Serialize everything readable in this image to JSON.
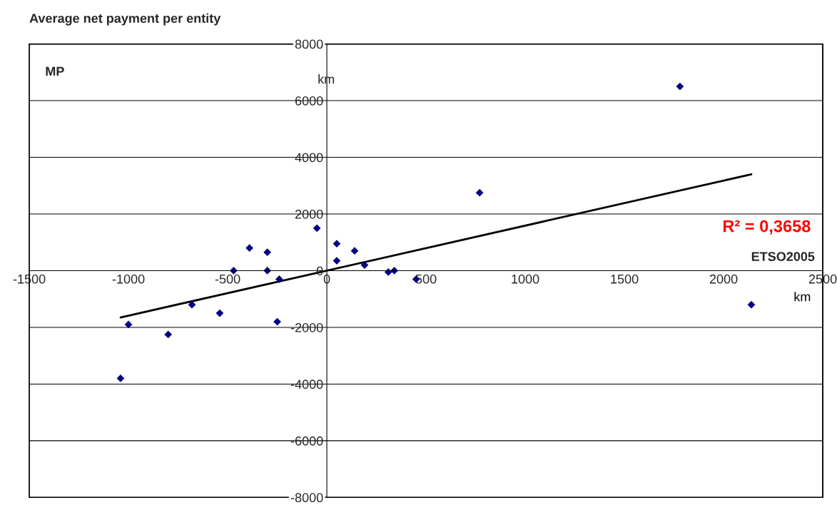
{
  "chart_data": {
    "type": "scatter",
    "title": "Average net payment per entity",
    "xlabel": "ETSO2005",
    "ylabel": "MP",
    "annotations": [
      "km",
      "km",
      "R² = 0,3658"
    ],
    "series": [
      {
        "color": "#000080",
        "marker": "diamond",
        "x": [
          1780,
          770,
          2140,
          -1000,
          -1040,
          -800,
          -680,
          -540,
          -470,
          -390,
          -300,
          -300,
          -240,
          -250,
          -50,
          50,
          50,
          140,
          190,
          310,
          340,
          450
        ],
        "values": [
          6500,
          2750,
          -1200,
          -1900,
          -3800,
          -2250,
          -1200,
          -1500,
          0,
          800,
          650,
          0,
          -300,
          -1800,
          1500,
          950,
          350,
          700,
          200,
          -50,
          0,
          -300
        ]
      },
      {
        "type": "line",
        "color": "#000000",
        "marker": "none",
        "line_style": "solid",
        "x": [
          -1040,
          2140
        ],
        "values": [
          -1650,
          3400
        ]
      }
    ],
    "xlim": [
      -1500,
      2500
    ],
    "xticks": [
      -1500,
      -1000,
      -500,
      0,
      500,
      1000,
      1500,
      2000,
      2500
    ],
    "ylim": [
      -8000,
      8000
    ],
    "yticks": [
      -8000,
      -6000,
      -4000,
      -2000,
      0,
      2000,
      4000,
      6000,
      8000
    ],
    "grid": "y"
  }
}
